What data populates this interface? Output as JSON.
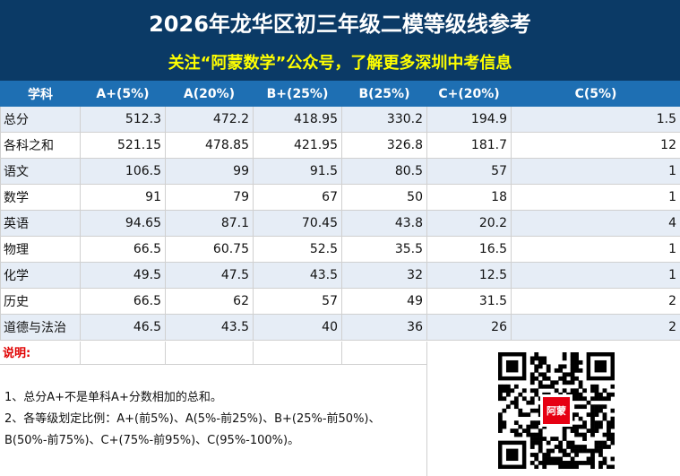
{
  "header": {
    "title": "2026年龙华区初三年级二模等级线参考",
    "subtitle": "关注“阿蒙数学”公众号，了解更多深圳中考信息"
  },
  "table": {
    "columns": [
      "学科",
      "A+(5%)",
      "A(20%)",
      "B+(25%)",
      "B(25%)",
      "C+(20%)",
      "C(5%)"
    ],
    "rows": [
      {
        "subject": "总分",
        "values": [
          "512.3",
          "472.2",
          "418.95",
          "330.2",
          "194.9",
          "1.5"
        ]
      },
      {
        "subject": "各科之和",
        "values": [
          "521.15",
          "478.85",
          "421.95",
          "326.8",
          "181.7",
          "12"
        ]
      },
      {
        "subject": "语文",
        "values": [
          "106.5",
          "99",
          "91.5",
          "80.5",
          "57",
          "1"
        ]
      },
      {
        "subject": "数学",
        "values": [
          "91",
          "79",
          "67",
          "50",
          "18",
          "1"
        ]
      },
      {
        "subject": "英语",
        "values": [
          "94.65",
          "87.1",
          "70.45",
          "43.8",
          "20.2",
          "4"
        ]
      },
      {
        "subject": "物理",
        "values": [
          "66.5",
          "60.75",
          "52.5",
          "35.5",
          "16.5",
          "1"
        ]
      },
      {
        "subject": "化学",
        "values": [
          "49.5",
          "47.5",
          "43.5",
          "32",
          "12.5",
          "1"
        ]
      },
      {
        "subject": "历史",
        "values": [
          "66.5",
          "62",
          "57",
          "49",
          "31.5",
          "2"
        ]
      },
      {
        "subject": "道德与法治",
        "values": [
          "46.5",
          "43.5",
          "40",
          "36",
          "26",
          "2"
        ]
      }
    ]
  },
  "notes": {
    "label": "说明:",
    "line1": "1、总分A+不是单科A+分数相加的总和。",
    "line2": "2、各等级划定比例：A+(前5%)、A(5%-前25%)、B+(25%-前50%)、",
    "line3": "B(50%-前75%)、C+(75%-前95%)、C(95%-100%)。"
  },
  "qr": {
    "badge_text": "阿蒙",
    "badge_color": "#e60012"
  },
  "colors": {
    "header_bg": "#0b3a66",
    "title_text": "#ffffff",
    "subtitle_text": "#ffff00",
    "column_header_bg": "#1e6fb3",
    "stripe_bg": "#e6edf6",
    "note_label": "#e00000"
  }
}
